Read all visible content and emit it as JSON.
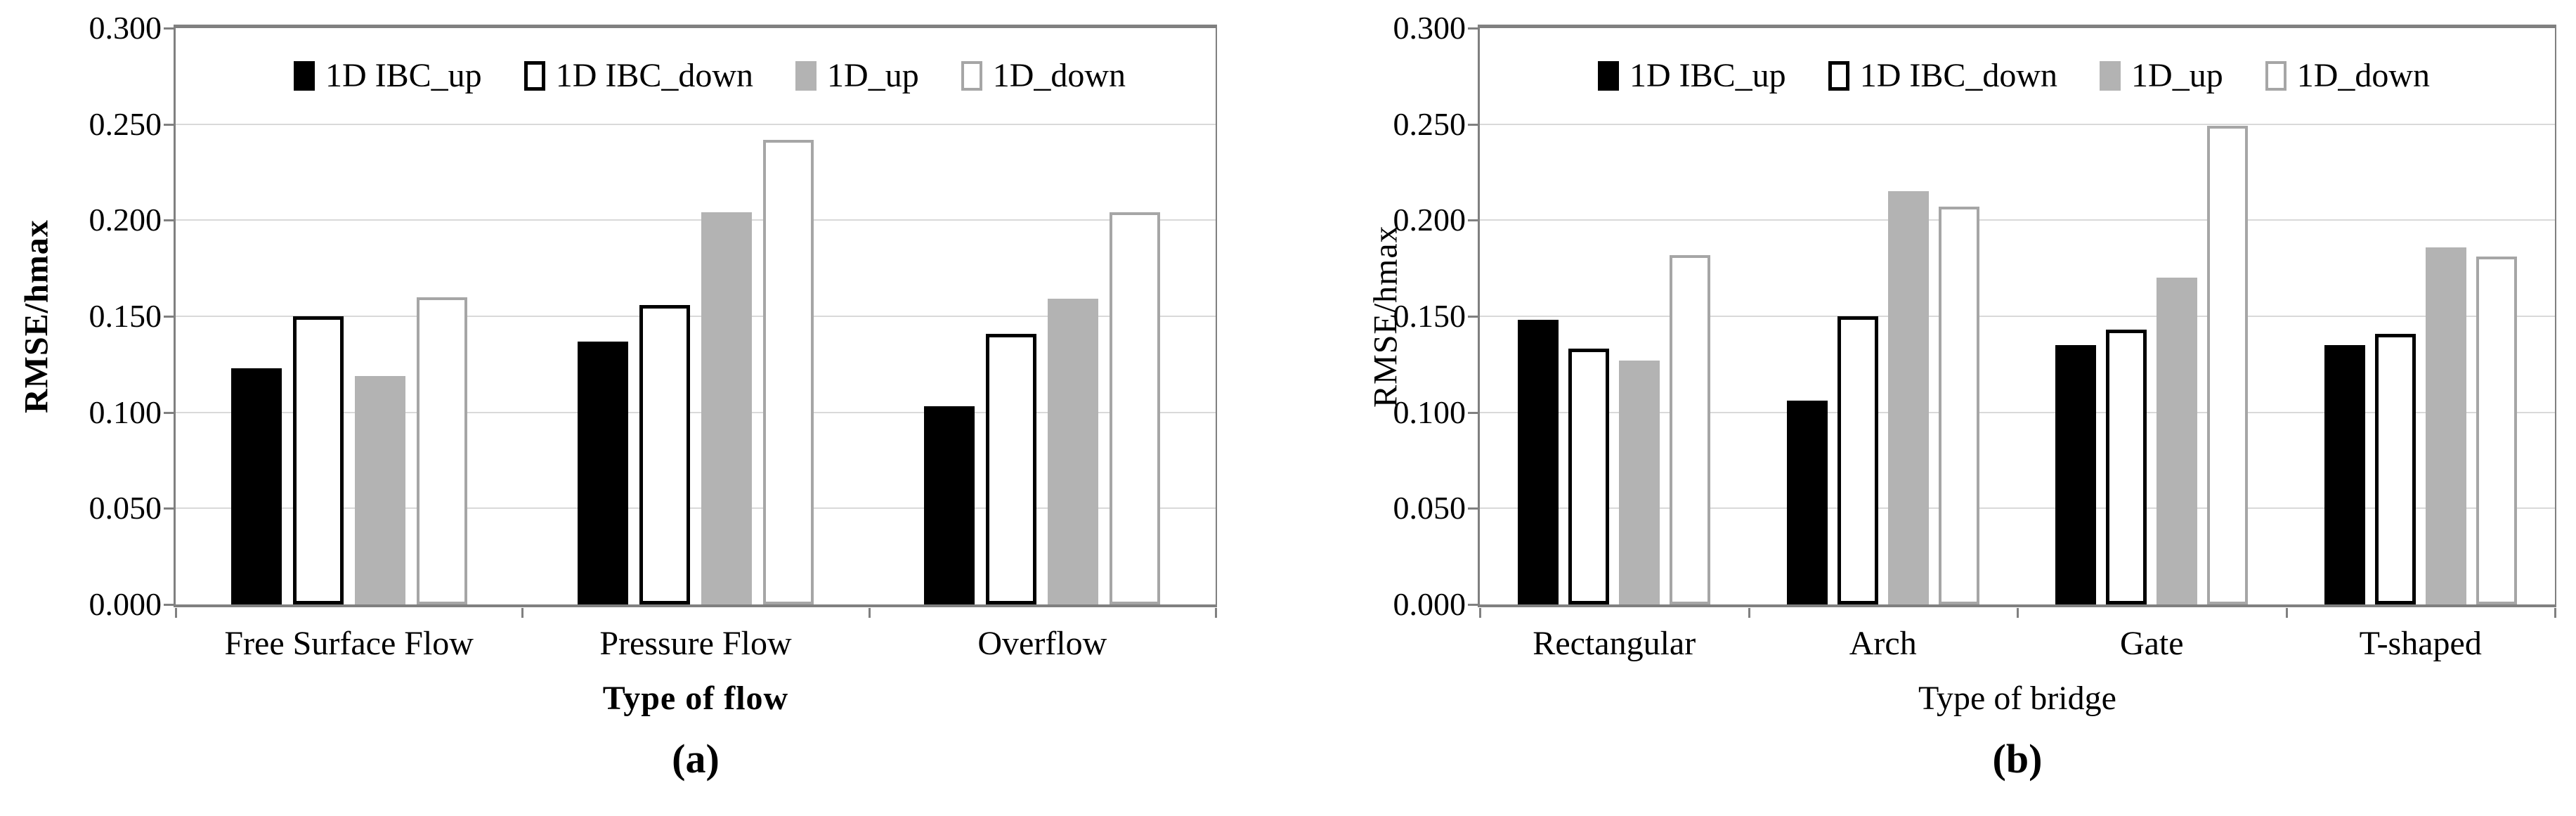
{
  "palette": {
    "bar_black": "#000000",
    "bar_white": "#ffffff",
    "bar_gray": "#b3b3b3",
    "ibc_down_border": "#000000",
    "d_down_border": "#a6a6a6",
    "gridline": "#d9d9d9",
    "axis": "#808080"
  },
  "chart_data": [
    {
      "id": "a",
      "type": "bar",
      "caption": "(a)",
      "ylabel": "RMSE/hmax",
      "xlabel": "Type of flow",
      "ylim": [
        0.0,
        0.3
      ],
      "ytick_step": 0.05,
      "y_ticks": [
        "0.300",
        "0.250",
        "0.200",
        "0.150",
        "0.100",
        "0.050",
        "0.000"
      ],
      "grid": true,
      "legend_position": "top-inside",
      "categories": [
        "Free Surface Flow",
        "Pressure Flow",
        "Overflow"
      ],
      "series": [
        {
          "name": "1D IBC_up",
          "fill": "#000000",
          "border": "none",
          "border_width": 0,
          "values": [
            0.123,
            0.137,
            0.103
          ]
        },
        {
          "name": "1D IBC_down",
          "fill": "#ffffff",
          "border": "#000000",
          "border_width": 5,
          "values": [
            0.15,
            0.156,
            0.141
          ]
        },
        {
          "name": "1D_up",
          "fill": "#b3b3b3",
          "border": "none",
          "border_width": 0,
          "values": [
            0.119,
            0.204,
            0.159
          ]
        },
        {
          "name": "1D_down",
          "fill": "#ffffff",
          "border": "#a6a6a6",
          "border_width": 4,
          "values": [
            0.16,
            0.242,
            0.204
          ]
        }
      ]
    },
    {
      "id": "b",
      "type": "bar",
      "caption": "(b)",
      "ylabel": "RMSE/hmax",
      "xlabel": "Type of bridge",
      "ylim": [
        0.0,
        0.3
      ],
      "ytick_step": 0.05,
      "y_ticks": [
        "0.300",
        "0.250",
        "0.200",
        "0.150",
        "0.100",
        "0.050",
        "0.000"
      ],
      "grid": true,
      "legend_position": "top-inside",
      "categories": [
        "Rectangular",
        "Arch",
        "Gate",
        "T-shaped"
      ],
      "series": [
        {
          "name": "1D IBC_up",
          "fill": "#000000",
          "border": "none",
          "border_width": 0,
          "values": [
            0.148,
            0.106,
            0.135,
            0.135
          ]
        },
        {
          "name": "1D IBC_down",
          "fill": "#ffffff",
          "border": "#000000",
          "border_width": 5,
          "values": [
            0.133,
            0.15,
            0.143,
            0.141
          ]
        },
        {
          "name": "1D_up",
          "fill": "#b3b3b3",
          "border": "none",
          "border_width": 0,
          "values": [
            0.127,
            0.215,
            0.17,
            0.186
          ]
        },
        {
          "name": "1D_down",
          "fill": "#ffffff",
          "border": "#a6a6a6",
          "border_width": 4,
          "values": [
            0.182,
            0.207,
            0.249,
            0.181
          ]
        }
      ]
    }
  ]
}
